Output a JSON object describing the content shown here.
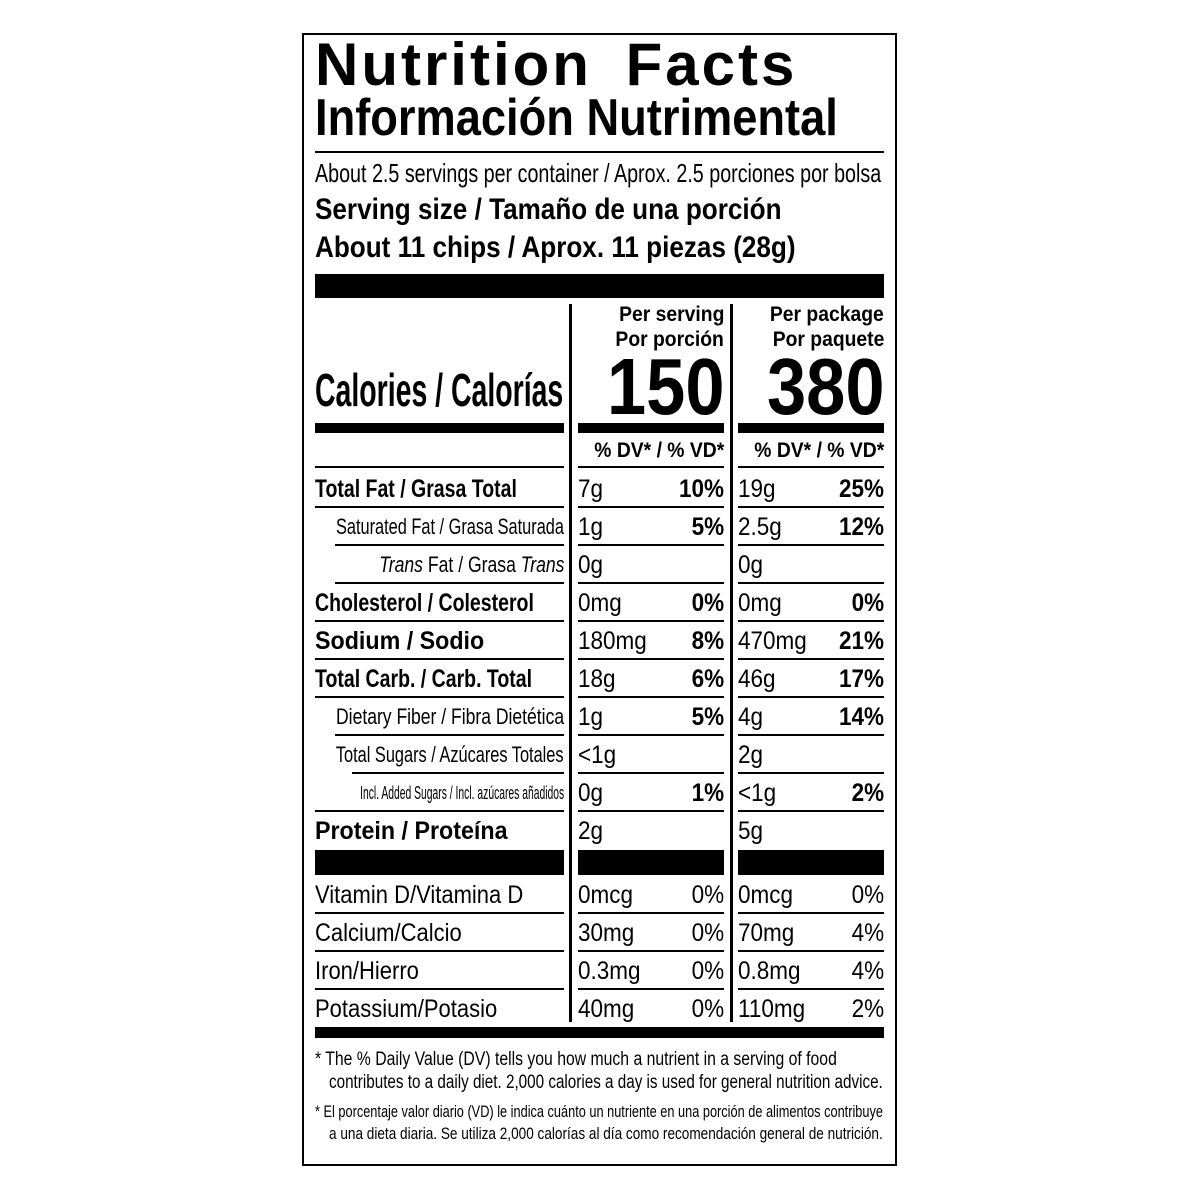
{
  "title_en": "Nutrition Facts",
  "title_es": "Información Nutrimental",
  "servings": "About 2.5 servings per container / Aprox. 2.5 porciones por bolsa",
  "serving_size_label": "Serving size / Tamaño de una porción",
  "serving_size_value": "About 11 chips / Aprox. 11 piezas (28g)",
  "calories": {
    "label": "Calories / Calorías",
    "per_serving_1": "Per serving",
    "per_serving_2": "Por porción",
    "per_package_1": "Per package",
    "per_package_2": "Por paquete",
    "serving_value": "150",
    "package_value": "380"
  },
  "dv_header": "% DV* / % VD*",
  "nutrients": [
    {
      "label": "Total Fat / Grasa Total",
      "style": "bold",
      "s_amt": "7g",
      "s_dv": "10%",
      "p_amt": "19g",
      "p_dv": "25%"
    },
    {
      "label": "Saturated Fat / Grasa Saturada",
      "style": "sub",
      "s_amt": "1g",
      "s_dv": "5%",
      "p_amt": "2.5g",
      "p_dv": "12%"
    },
    {
      "label": "Trans Fat / Grasa Trans",
      "style": "trans",
      "s_amt": "0g",
      "s_dv": "",
      "p_amt": "0g",
      "p_dv": ""
    },
    {
      "label": "Cholesterol / Colesterol",
      "style": "bold",
      "s_amt": "0mg",
      "s_dv": "0%",
      "p_amt": "0mg",
      "p_dv": "0%"
    },
    {
      "label": "Sodium / Sodio",
      "style": "boldwide",
      "s_amt": "180mg",
      "s_dv": "8%",
      "p_amt": "470mg",
      "p_dv": "21%"
    },
    {
      "label": "Total Carb. / Carb. Total",
      "style": "bold",
      "s_amt": "18g",
      "s_dv": "6%",
      "p_amt": "46g",
      "p_dv": "17%"
    },
    {
      "label": "Dietary Fiber / Fibra Dietética",
      "style": "sub",
      "s_amt": "1g",
      "s_dv": "5%",
      "p_amt": "4g",
      "p_dv": "14%"
    },
    {
      "label": "Total Sugars / Azúcares Totales",
      "style": "sub",
      "s_amt": "<1g",
      "s_dv": "",
      "p_amt": "2g",
      "p_dv": ""
    },
    {
      "label": "Incl. Added Sugars / Incl. azúcares añadidos",
      "style": "subsub",
      "s_amt": "0g",
      "s_dv": "1%",
      "p_amt": "<1g",
      "p_dv": "2%"
    },
    {
      "label": "Protein / Proteína",
      "style": "boldwide",
      "s_amt": "2g",
      "s_dv": "",
      "p_amt": "5g",
      "p_dv": ""
    }
  ],
  "vitamins": [
    {
      "label": "Vitamin D/Vitamina D",
      "s_amt": "0mcg",
      "s_dv": "0%",
      "p_amt": "0mcg",
      "p_dv": "0%"
    },
    {
      "label": "Calcium/Calcio",
      "s_amt": "30mg",
      "s_dv": "0%",
      "p_amt": "70mg",
      "p_dv": "4%"
    },
    {
      "label": "Iron/Hierro",
      "s_amt": "0.3mg",
      "s_dv": "0%",
      "p_amt": "0.8mg",
      "p_dv": "4%"
    },
    {
      "label": "Potassium/Potasio",
      "s_amt": "40mg",
      "s_dv": "0%",
      "p_amt": "110mg",
      "p_dv": "2%"
    }
  ],
  "footnote_en_1": "*  The % Daily Value (DV) tells you how much a nutrient in a serving of food",
  "footnote_en_2": "contributes to a daily diet. 2,000 calories a day is used for general nutrition advice.",
  "footnote_es_1": "*  El porcentaje valor diario (VD) le indica cuánto un nutriente en una porción de alimentos contribuye",
  "footnote_es_2": "a una dieta diaria. Se utiliza 2,000 calorías al día como recomendación general de nutrición."
}
